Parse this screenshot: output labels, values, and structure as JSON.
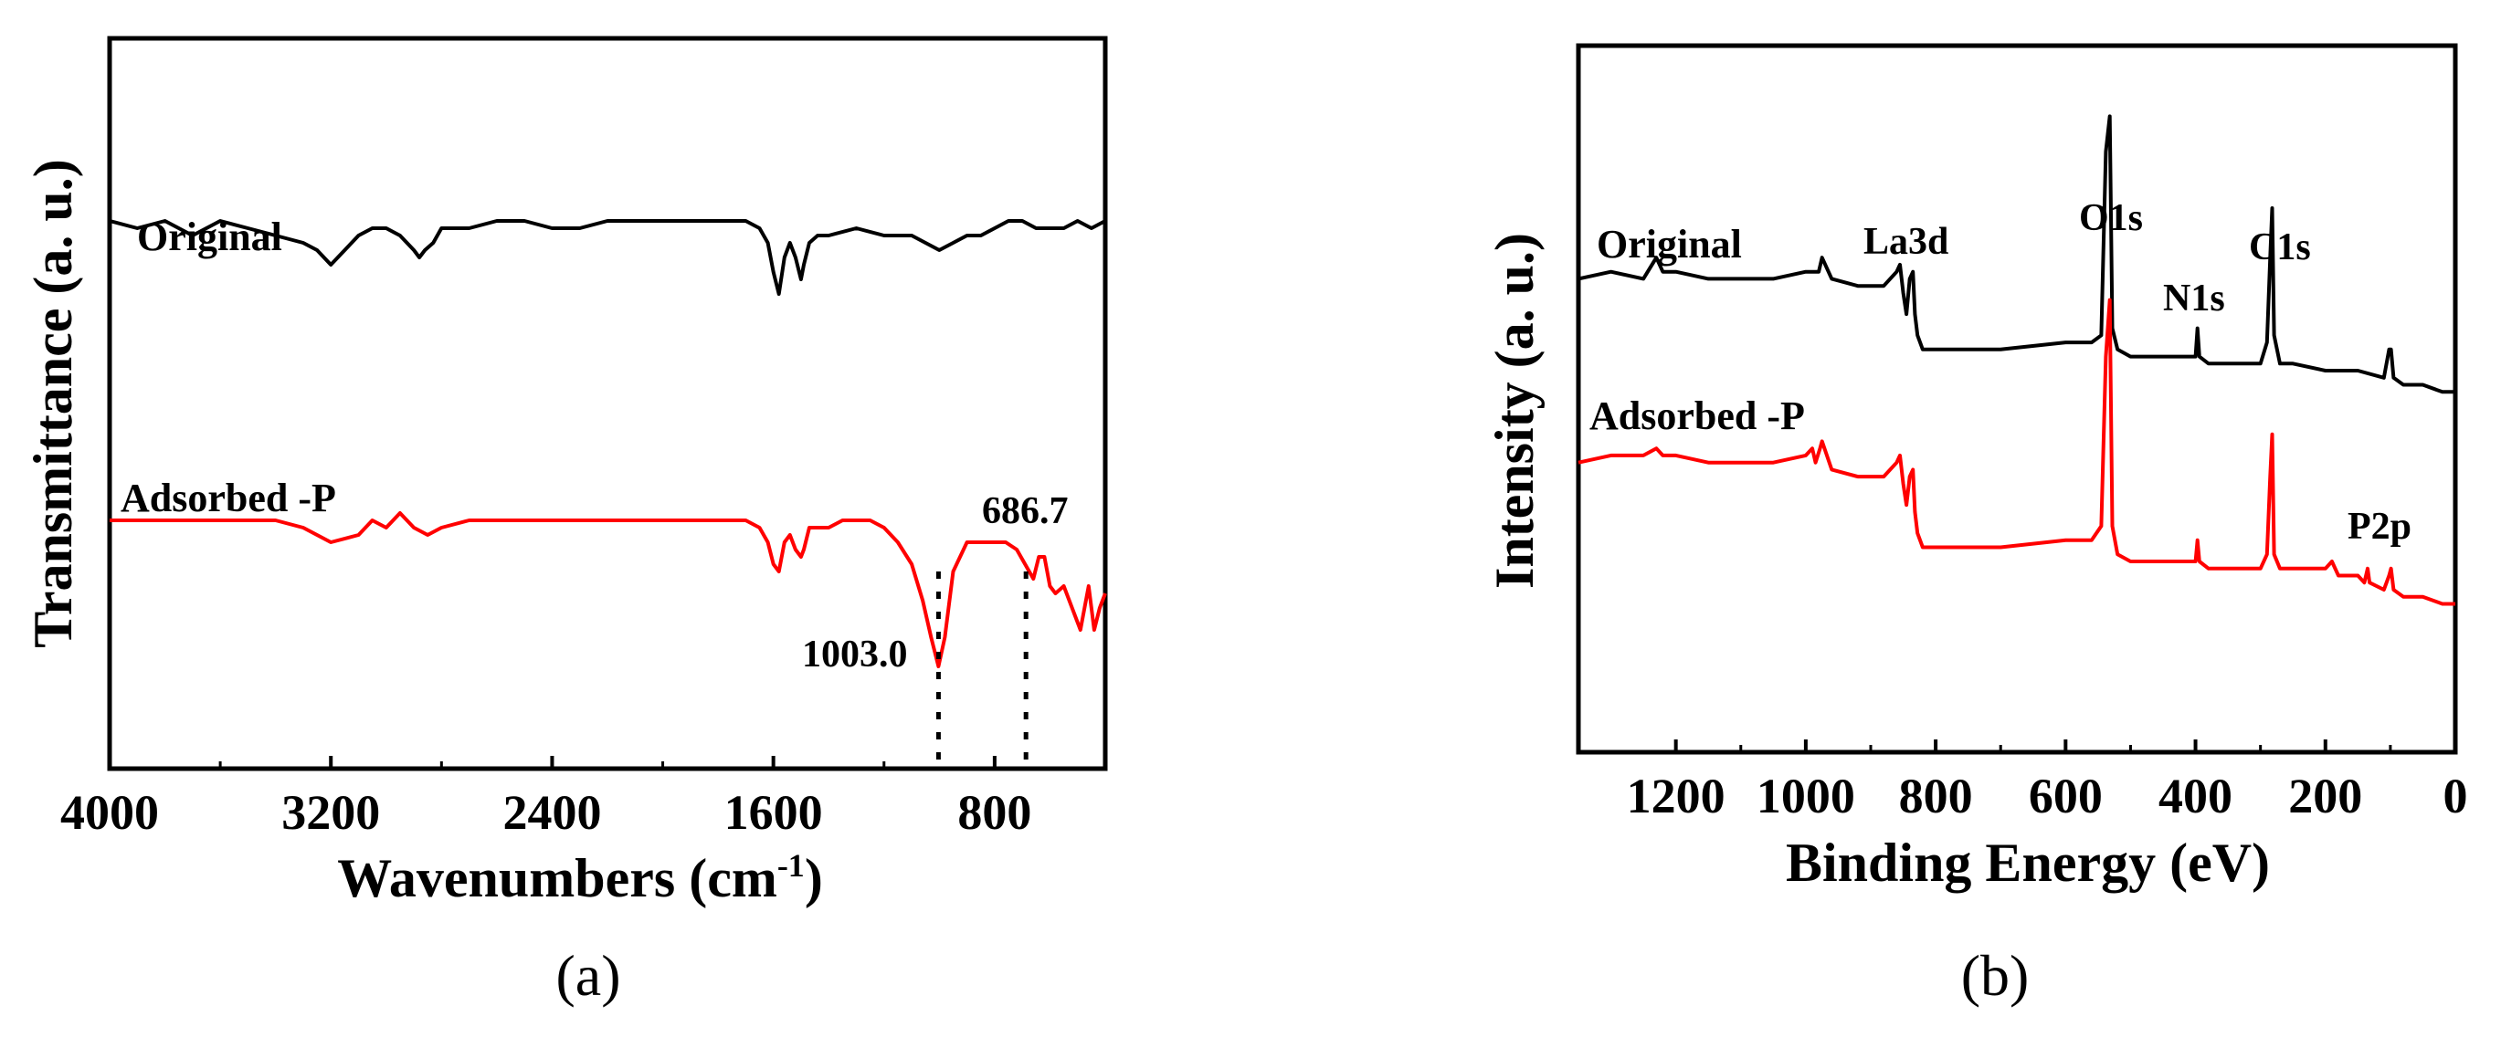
{
  "chart_data": [
    {
      "type": "line",
      "panel_label": "(a)",
      "xlabel": "Wavenumbers (cm",
      "xlabel_sup": "-1",
      "xlabel_close": ")",
      "ylabel": "Transmittance (a. u.)",
      "xlim": [
        4000,
        400
      ],
      "x_ticks": [
        4000,
        3200,
        2400,
        1600,
        800
      ],
      "x_tick_labels": [
        "4000",
        "3200",
        "2400",
        "1600",
        "800"
      ],
      "ylim": [
        0,
        100
      ],
      "y_ticks_visible": false,
      "series": [
        {
          "name": "Original",
          "label": "Original",
          "color": "#000000",
          "x": [
            4000,
            3900,
            3800,
            3700,
            3600,
            3500,
            3400,
            3300,
            3250,
            3200,
            3150,
            3100,
            3050,
            3000,
            2950,
            2900,
            2880,
            2860,
            2830,
            2800,
            2700,
            2600,
            2500,
            2400,
            2300,
            2200,
            2100,
            2000,
            1900,
            1800,
            1700,
            1650,
            1620,
            1600,
            1580,
            1560,
            1540,
            1520,
            1500,
            1490,
            1470,
            1440,
            1400,
            1300,
            1200,
            1100,
            1050,
            1000,
            950,
            900,
            850,
            800,
            750,
            700,
            650,
            600,
            550,
            500,
            450,
            400
          ],
          "y": [
            75,
            74,
            75,
            73,
            75,
            74,
            73,
            72,
            71,
            69,
            71,
            73,
            74,
            74,
            73,
            71,
            70,
            71,
            72,
            74,
            74,
            75,
            75,
            74,
            74,
            75,
            75,
            75,
            75,
            75,
            75,
            74,
            72,
            68,
            65,
            70,
            72,
            70,
            67,
            69,
            72,
            73,
            73,
            74,
            73,
            73,
            72,
            71,
            72,
            73,
            73,
            74,
            75,
            75,
            74,
            74,
            74,
            75,
            74,
            75
          ]
        },
        {
          "name": "Adsorbed -P",
          "label": "Adsorbed -P",
          "color": "#ff0000",
          "x": [
            4000,
            3800,
            3600,
            3400,
            3300,
            3200,
            3100,
            3050,
            3000,
            2950,
            2900,
            2850,
            2800,
            2700,
            2600,
            2400,
            2200,
            2000,
            1800,
            1700,
            1650,
            1620,
            1600,
            1580,
            1560,
            1540,
            1520,
            1500,
            1490,
            1470,
            1440,
            1400,
            1350,
            1300,
            1250,
            1200,
            1150,
            1100,
            1060,
            1030,
            1003,
            980,
            950,
            900,
            850,
            800,
            760,
            720,
            690,
            660,
            640,
            620,
            600,
            580,
            550,
            520,
            490,
            460,
            440,
            420,
            400
          ],
          "y": [
            34,
            34,
            34,
            34,
            33,
            31,
            32,
            34,
            33,
            35,
            33,
            32,
            33,
            34,
            34,
            34,
            34,
            34,
            34,
            34,
            33,
            31,
            28,
            27,
            31,
            32,
            30,
            29,
            30,
            33,
            33,
            33,
            34,
            34,
            34,
            33,
            31,
            28,
            23,
            18,
            14,
            18,
            27,
            31,
            31,
            31,
            31,
            30,
            28,
            26,
            29,
            29,
            25,
            24,
            25,
            22,
            19,
            25,
            19,
            22,
            24
          ]
        }
      ],
      "annotations": [
        {
          "text": "686.7",
          "x": 686.7
        },
        {
          "text": "1003.0",
          "x": 1003.0
        }
      ],
      "marker_lines": [
        1003.0,
        686.7
      ]
    },
    {
      "type": "line",
      "panel_label": "(b)",
      "xlabel": "Binding Energy (eV)",
      "ylabel": "Intensity (a. u.)",
      "xlim": [
        1350,
        0
      ],
      "x_ticks": [
        1200,
        1000,
        800,
        600,
        400,
        200,
        0
      ],
      "x_tick_labels": [
        "1200",
        "1000",
        "800",
        "600",
        "400",
        "200",
        "0"
      ],
      "ylim": [
        0,
        100
      ],
      "y_ticks_visible": false,
      "series": [
        {
          "name": "Original",
          "label": "Original",
          "color": "#000000",
          "x": [
            1350,
            1300,
            1250,
            1230,
            1220,
            1200,
            1150,
            1100,
            1050,
            1000,
            980,
            975,
            960,
            920,
            880,
            860,
            855,
            850,
            845,
            840,
            835,
            832,
            828,
            820,
            800,
            700,
            600,
            560,
            545,
            538,
            532,
            528,
            520,
            500,
            450,
            400,
            397,
            394,
            380,
            350,
            300,
            290,
            285,
            282,
            279,
            270,
            250,
            200,
            150,
            110,
            102,
            99,
            95,
            80,
            50,
            20,
            0
          ],
          "y": [
            67,
            68,
            67,
            70,
            68,
            68,
            67,
            67,
            67,
            68,
            68,
            70,
            67,
            66,
            66,
            68,
            69,
            65,
            62,
            67,
            68,
            62,
            59,
            57,
            57,
            57,
            58,
            58,
            59,
            85,
            90,
            60,
            57,
            56,
            56,
            56,
            60,
            56,
            55,
            55,
            55,
            58,
            70,
            77,
            59,
            55,
            55,
            54,
            54,
            53,
            57,
            57,
            53,
            52,
            52,
            51,
            51
          ]
        },
        {
          "name": "Adsorbed -P",
          "label": "Adsorbed -P",
          "color": "#ff0000",
          "x": [
            1350,
            1300,
            1250,
            1230,
            1220,
            1200,
            1150,
            1100,
            1050,
            1000,
            990,
            985,
            978,
            975,
            960,
            920,
            880,
            860,
            855,
            850,
            845,
            840,
            835,
            832,
            828,
            820,
            800,
            700,
            600,
            560,
            545,
            538,
            532,
            528,
            520,
            500,
            450,
            400,
            397,
            394,
            380,
            350,
            300,
            290,
            285,
            282,
            279,
            270,
            250,
            200,
            190,
            180,
            150,
            140,
            135,
            132,
            110,
            102,
            99,
            95,
            80,
            50,
            20,
            0
          ],
          "y": [
            41,
            42,
            42,
            43,
            42,
            42,
            41,
            41,
            41,
            42,
            43,
            41,
            43,
            44,
            40,
            39,
            39,
            41,
            42,
            38,
            35,
            39,
            40,
            34,
            31,
            29,
            29,
            29,
            30,
            30,
            32,
            56,
            64,
            32,
            28,
            27,
            27,
            27,
            30,
            27,
            26,
            26,
            26,
            28,
            39,
            45,
            28,
            26,
            26,
            26,
            27,
            25,
            25,
            24,
            26,
            24,
            23,
            25,
            26,
            23,
            22,
            22,
            21,
            21
          ]
        }
      ],
      "annotations": [
        {
          "text": "La3d",
          "x": 835
        },
        {
          "text": "O1s",
          "x": 532
        },
        {
          "text": "N1s",
          "x": 400
        },
        {
          "text": "C1s",
          "x": 285
        },
        {
          "text": "P2p",
          "x": 133
        }
      ]
    }
  ]
}
